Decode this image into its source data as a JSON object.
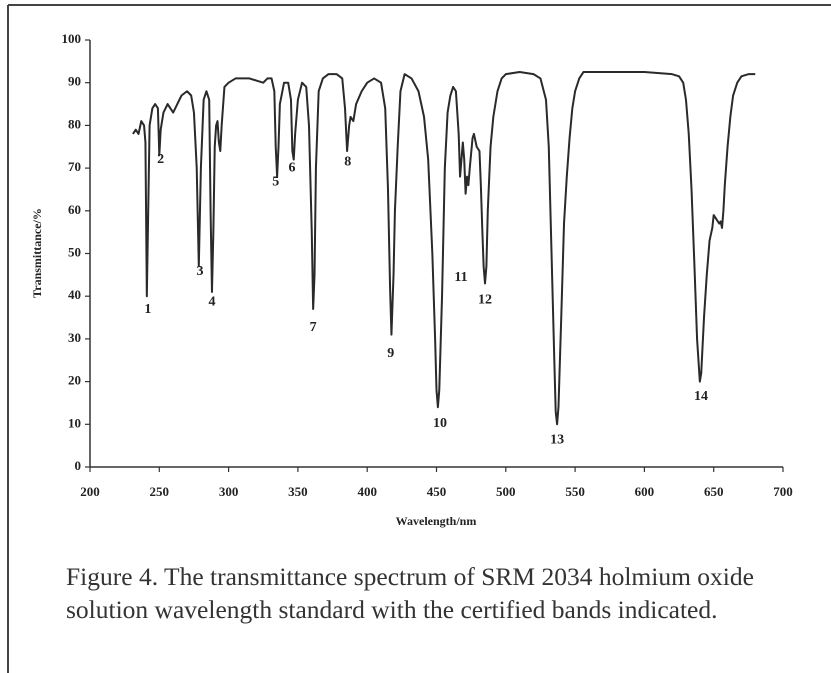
{
  "chart_data": {
    "type": "line",
    "xlabel": "Wavelength/nm",
    "ylabel": "Transmittance/%",
    "caption": "Figure 4. The transmittance spectrum of SRM 2034 holmium oxide solution wavelength standard with the certified bands indicated.",
    "color": "#2a2a2a",
    "xlim": [
      200,
      700
    ],
    "ylim": [
      0,
      100
    ],
    "xticks": [
      200,
      250,
      300,
      350,
      400,
      450,
      500,
      550,
      600,
      650,
      700
    ],
    "yticks": [
      0,
      10,
      20,
      30,
      40,
      50,
      60,
      70,
      80,
      90,
      100
    ],
    "x": [
      231,
      233,
      235,
      237,
      239,
      240,
      241,
      242,
      243,
      245,
      247,
      249,
      250,
      251,
      253,
      256,
      258,
      260,
      263,
      266,
      270,
      273,
      275,
      277,
      278.5,
      280,
      282,
      284,
      286,
      287,
      288,
      289,
      290,
      291,
      292,
      293,
      294,
      295,
      297,
      300,
      305,
      315,
      320,
      325,
      328,
      331,
      333,
      334,
      335,
      336,
      337,
      340,
      343,
      345,
      346,
      347,
      348,
      350,
      353,
      356,
      358,
      360,
      361,
      362,
      363,
      365,
      368,
      372,
      378,
      382,
      384,
      385.5,
      387,
      388,
      390,
      392,
      396,
      400,
      405,
      410,
      413,
      415,
      416.5,
      417.5,
      419,
      420,
      422,
      424,
      427,
      432,
      437,
      441,
      444,
      447,
      449,
      450,
      451,
      452,
      454,
      456,
      458,
      460,
      462,
      464,
      466,
      467,
      468,
      469,
      470,
      471,
      472,
      473,
      474,
      476,
      477,
      479,
      481,
      482,
      483,
      484,
      485,
      486,
      487,
      489,
      491,
      494,
      497,
      500,
      510,
      520,
      525,
      529,
      531,
      533,
      535,
      536,
      537,
      538,
      540,
      542,
      544,
      546,
      548,
      550,
      553,
      556,
      600,
      620,
      625,
      628,
      630,
      632,
      634,
      636,
      638,
      640,
      641,
      643,
      645,
      647,
      649,
      650,
      652,
      654,
      655,
      656,
      657,
      658,
      660,
      662,
      664,
      667,
      670,
      675,
      680
    ],
    "values": [
      78,
      79,
      78,
      81,
      80,
      76,
      40,
      60,
      80,
      84,
      85,
      84,
      73,
      79,
      83,
      85,
      84,
      83,
      85,
      87,
      88,
      87,
      83,
      70,
      47,
      70,
      86,
      88,
      86,
      60,
      41,
      55,
      75,
      80,
      81,
      76,
      74,
      80,
      89,
      90,
      91,
      91,
      90.5,
      90,
      91,
      91,
      88,
      75,
      68,
      75,
      85,
      90,
      90,
      86,
      74,
      72,
      78,
      86,
      90,
      89,
      80,
      55,
      37,
      45,
      70,
      88,
      91,
      92,
      92,
      91,
      84,
      74,
      80,
      82,
      81,
      85,
      88,
      90,
      91,
      90,
      84,
      65,
      42,
      31,
      45,
      60,
      75,
      88,
      92,
      91,
      88,
      82,
      72,
      50,
      30,
      18,
      14,
      18,
      40,
      70,
      83,
      87,
      89,
      88,
      78,
      68,
      72,
      76,
      72,
      64,
      68,
      66,
      70,
      77,
      78,
      75,
      74,
      66,
      56,
      47,
      43,
      47,
      60,
      75,
      82,
      88,
      91,
      92,
      92.5,
      92,
      91,
      86,
      75,
      50,
      25,
      13,
      10,
      14,
      35,
      57,
      68,
      77,
      84,
      88,
      91,
      92.5,
      92.5,
      92,
      91.5,
      90,
      86,
      78,
      65,
      48,
      30,
      20,
      22,
      35,
      45,
      53,
      56,
      59,
      58,
      57,
      57.5,
      56,
      60,
      66,
      75,
      82,
      87,
      90,
      91.5,
      92,
      92
    ],
    "annotations": [
      {
        "text": "1",
        "x": 241.8,
        "y": 36.8
      },
      {
        "text": "2",
        "x": 251,
        "y": 71.9
      },
      {
        "text": "3",
        "x": 279.4,
        "y": 45.7
      },
      {
        "text": "4",
        "x": 288,
        "y": 38.6
      },
      {
        "text": "5",
        "x": 334,
        "y": 66.7
      },
      {
        "text": "6",
        "x": 345.7,
        "y": 70
      },
      {
        "text": "7",
        "x": 361,
        "y": 32.6
      },
      {
        "text": "8",
        "x": 386,
        "y": 71.4
      },
      {
        "text": "9",
        "x": 417,
        "y": 26.5
      },
      {
        "text": "10",
        "x": 452.5,
        "y": 10.1
      },
      {
        "text": "11",
        "x": 467.7,
        "y": 44.3
      },
      {
        "text": "12",
        "x": 485,
        "y": 39.1
      },
      {
        "text": "13",
        "x": 537,
        "y": 6.3
      },
      {
        "text": "14",
        "x": 640.8,
        "y": 16.4
      }
    ]
  }
}
